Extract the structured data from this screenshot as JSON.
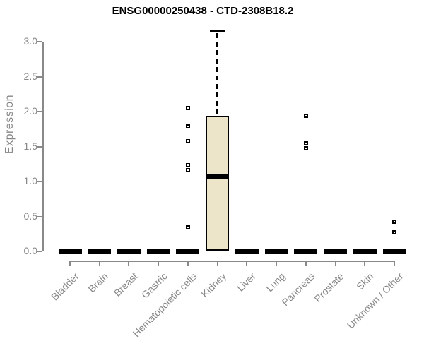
{
  "chart_data": {
    "type": "boxplot",
    "title": "ENSG00000250438 - CTD-2308B18.2",
    "xlabel": "",
    "ylabel": "Expression",
    "ylim": [
      0.0,
      3.15
    ],
    "yticks": [
      0.0,
      0.5,
      1.0,
      1.5,
      2.0,
      2.5,
      3.0
    ],
    "grid": false,
    "legend": null,
    "categories": [
      "Bladder",
      "Brain",
      "Breast",
      "Gastric",
      "Hematopoietic cells",
      "Kidney",
      "Liver",
      "Lung",
      "Pancreas",
      "Prostate",
      "Skin",
      "Unknown / Other"
    ],
    "boxes": [
      {
        "category": "Bladder",
        "median": 0.0,
        "q1": 0.0,
        "q3": 0.0,
        "whisker_low": 0.0,
        "whisker_high": 0.0,
        "outliers": []
      },
      {
        "category": "Brain",
        "median": 0.0,
        "q1": 0.0,
        "q3": 0.0,
        "whisker_low": 0.0,
        "whisker_high": 0.0,
        "outliers": []
      },
      {
        "category": "Breast",
        "median": 0.0,
        "q1": 0.0,
        "q3": 0.0,
        "whisker_low": 0.0,
        "whisker_high": 0.0,
        "outliers": []
      },
      {
        "category": "Gastric",
        "median": 0.0,
        "q1": 0.0,
        "q3": 0.0,
        "whisker_low": 0.0,
        "whisker_high": 0.0,
        "outliers": []
      },
      {
        "category": "Hematopoietic cells",
        "median": 0.0,
        "q1": 0.0,
        "q3": 0.0,
        "whisker_low": 0.0,
        "whisker_high": 0.0,
        "outliers": [
          2.05,
          1.79,
          1.58,
          1.23,
          1.16,
          0.34
        ]
      },
      {
        "category": "Kidney",
        "median": 1.07,
        "q1": 0.01,
        "q3": 1.94,
        "whisker_low": 0.0,
        "whisker_high": 3.15,
        "outliers": []
      },
      {
        "category": "Liver",
        "median": 0.0,
        "q1": 0.0,
        "q3": 0.0,
        "whisker_low": 0.0,
        "whisker_high": 0.0,
        "outliers": []
      },
      {
        "category": "Lung",
        "median": 0.0,
        "q1": 0.0,
        "q3": 0.0,
        "whisker_low": 0.0,
        "whisker_high": 0.0,
        "outliers": []
      },
      {
        "category": "Pancreas",
        "median": 0.0,
        "q1": 0.0,
        "q3": 0.0,
        "whisker_low": 0.0,
        "whisker_high": 0.0,
        "outliers": [
          1.94,
          1.55,
          1.47
        ]
      },
      {
        "category": "Prostate",
        "median": 0.0,
        "q1": 0.0,
        "q3": 0.0,
        "whisker_low": 0.0,
        "whisker_high": 0.0,
        "outliers": []
      },
      {
        "category": "Skin",
        "median": 0.0,
        "q1": 0.0,
        "q3": 0.0,
        "whisker_low": 0.0,
        "whisker_high": 0.0,
        "outliers": []
      },
      {
        "category": "Unknown / Other",
        "median": 0.0,
        "q1": 0.0,
        "q3": 0.0,
        "whisker_low": 0.0,
        "whisker_high": 0.0,
        "outliers": [
          0.42,
          0.27
        ]
      }
    ],
    "colors": {
      "box_fill": "#ECE5C9",
      "box_border": "#000000",
      "median": "#000000",
      "outlier": "#000000",
      "whisker": "#000000",
      "axis": "#898989",
      "tick_label": "#878787",
      "title": "#000000",
      "background": "#FFFFFF"
    }
  }
}
